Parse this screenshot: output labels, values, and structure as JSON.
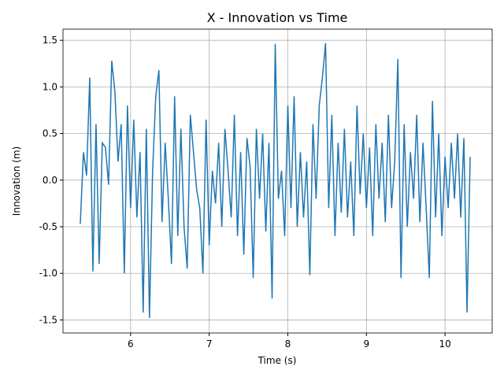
{
  "chart_data": {
    "type": "line",
    "title": "X - Innovation vs Time",
    "x_label": "Time (s)",
    "y_label": "Innovation (m)",
    "xlim": [
      5.14,
      10.6
    ],
    "xticks": [
      6,
      7,
      8,
      9,
      10
    ],
    "ylim": [
      -1.64,
      1.62
    ],
    "yticks": [
      -1.5,
      -1.0,
      -0.5,
      0.0,
      0.5,
      1.0,
      1.5
    ],
    "grid": true,
    "series": [
      {
        "color": "#1f77b4",
        "x": [
          5.36,
          5.4,
          5.44,
          5.48,
          5.52,
          5.56,
          5.6,
          5.64,
          5.68,
          5.72,
          5.76,
          5.8,
          5.84,
          5.88,
          5.92,
          5.96,
          6.0,
          6.04,
          6.08,
          6.12,
          6.16,
          6.2,
          6.24,
          6.28,
          6.32,
          6.36,
          6.4,
          6.44,
          6.48,
          6.52,
          6.56,
          6.6,
          6.64,
          6.68,
          6.72,
          6.76,
          6.8,
          6.84,
          6.88,
          6.92,
          6.96,
          7.0,
          7.04,
          7.08,
          7.12,
          7.16,
          7.2,
          7.24,
          7.28,
          7.32,
          7.36,
          7.4,
          7.44,
          7.48,
          7.52,
          7.56,
          7.6,
          7.64,
          7.68,
          7.72,
          7.76,
          7.8,
          7.84,
          7.88,
          7.92,
          7.96,
          8.0,
          8.04,
          8.08,
          8.12,
          8.16,
          8.2,
          8.24,
          8.28,
          8.32,
          8.36,
          8.4,
          8.44,
          8.48,
          8.52,
          8.56,
          8.6,
          8.64,
          8.68,
          8.72,
          8.76,
          8.8,
          8.84,
          8.88,
          8.92,
          8.96,
          9.0,
          9.04,
          9.08,
          9.12,
          9.16,
          9.2,
          9.24,
          9.28,
          9.32,
          9.36,
          9.4,
          9.44,
          9.48,
          9.52,
          9.56,
          9.6,
          9.64,
          9.68,
          9.72,
          9.76,
          9.8,
          9.84,
          9.88,
          9.92,
          9.96,
          10.0,
          10.04,
          10.08,
          10.12,
          10.16,
          10.2,
          10.24,
          10.28,
          10.32
        ],
        "values": [
          -0.47,
          0.3,
          0.05,
          1.1,
          -0.98,
          0.6,
          -0.9,
          0.4,
          0.35,
          -0.05,
          1.28,
          0.95,
          0.2,
          0.6,
          -1.0,
          0.8,
          -0.3,
          0.65,
          -0.4,
          0.3,
          -1.42,
          0.55,
          -1.48,
          0.1,
          0.9,
          1.18,
          -0.45,
          0.4,
          -0.2,
          -0.9,
          0.9,
          -0.6,
          0.55,
          -0.5,
          -0.95,
          0.7,
          0.3,
          -0.1,
          -0.3,
          -1.0,
          0.65,
          -0.7,
          0.1,
          -0.25,
          0.4,
          -0.5,
          0.55,
          0.1,
          -0.4,
          0.7,
          -0.6,
          0.3,
          -0.8,
          0.45,
          0.15,
          -1.05,
          0.55,
          -0.2,
          0.5,
          -0.55,
          0.4,
          -1.27,
          1.46,
          -0.2,
          0.1,
          -0.6,
          0.8,
          -0.3,
          0.9,
          -0.5,
          0.3,
          -0.4,
          0.2,
          -1.02,
          0.6,
          -0.2,
          0.8,
          1.1,
          1.47,
          -0.3,
          0.7,
          -0.6,
          0.4,
          -0.35,
          0.55,
          -0.4,
          0.2,
          -0.6,
          0.8,
          -0.15,
          0.5,
          -0.3,
          0.35,
          -0.6,
          0.6,
          -0.2,
          0.4,
          -0.45,
          0.7,
          -0.3,
          0.2,
          1.3,
          -1.05,
          0.6,
          -0.5,
          0.3,
          -0.2,
          0.7,
          -0.45,
          0.4,
          -0.3,
          -1.05,
          0.85,
          -0.4,
          0.5,
          -0.6,
          0.25,
          -0.3,
          0.4,
          -0.2,
          0.5,
          -0.4,
          0.45,
          -1.42,
          0.25
        ]
      }
    ]
  }
}
